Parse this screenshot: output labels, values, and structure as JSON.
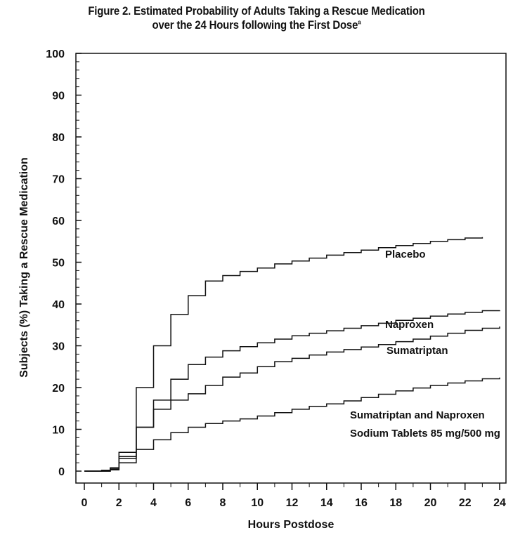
{
  "chart_data": {
    "type": "line",
    "step": true,
    "title_line1": "Figure 2. Estimated Probability of Adults Taking a Rescue Medication",
    "title_line2": "over the 24 Hours following the First Dose",
    "title_superscript": "a",
    "xlabel": "Hours Postdose",
    "ylabel": "Subjects (%) Taking a Rescue Medication",
    "xlim": [
      0,
      24
    ],
    "ylim": [
      0,
      100
    ],
    "xticks": [
      "0",
      "2",
      "4",
      "6",
      "8",
      "10",
      "12",
      "14",
      "16",
      "18",
      "20",
      "22",
      "24"
    ],
    "yticks": [
      "0",
      "10",
      "20",
      "30",
      "40",
      "50",
      "60",
      "70",
      "80",
      "90",
      "100"
    ],
    "series": [
      {
        "name": "Placebo",
        "label_lines": [
          "Placebo"
        ],
        "color": "#111111",
        "x": [
          0,
          1.0,
          1.5,
          2,
          3,
          4,
          5,
          6,
          7,
          8,
          9,
          10,
          11,
          12,
          13,
          14,
          15,
          16,
          17,
          18,
          19,
          20,
          21,
          22,
          23
        ],
        "y": [
          0,
          0.2,
          0.8,
          4.5,
          20,
          30,
          37.5,
          42,
          45.5,
          46.8,
          47.8,
          48.6,
          49.6,
          50.3,
          51.0,
          51.7,
          52.3,
          52.9,
          53.5,
          54.0,
          54.5,
          55.0,
          55.4,
          55.8,
          56.0
        ]
      },
      {
        "name": "Naproxen",
        "label_lines": [
          "Naproxen"
        ],
        "color": "#111111",
        "x": [
          0,
          1.5,
          2,
          3,
          4,
          5,
          6,
          7,
          8,
          9,
          10,
          11,
          12,
          13,
          14,
          15,
          16,
          17,
          18,
          19,
          20,
          21,
          22,
          23,
          24
        ],
        "y": [
          0,
          0.5,
          3.5,
          10.5,
          17,
          22,
          25.5,
          27.3,
          28.8,
          29.8,
          30.7,
          31.6,
          32.4,
          33.0,
          33.6,
          34.2,
          34.8,
          35.4,
          36.1,
          36.6,
          37.1,
          37.6,
          38.0,
          38.4,
          38.5
        ]
      },
      {
        "name": "Sumatriptan",
        "label_lines": [
          "Sumatriptan"
        ],
        "color": "#111111",
        "x": [
          0,
          1.5,
          2,
          3,
          4,
          5,
          6,
          7,
          8,
          9,
          10,
          11,
          12,
          13,
          14,
          15,
          16,
          17,
          18,
          19,
          20,
          21,
          22,
          23,
          24
        ],
        "y": [
          0,
          0.5,
          3,
          10.5,
          14.8,
          17,
          18.5,
          20.5,
          22.5,
          23.5,
          25.0,
          26.2,
          27.0,
          27.8,
          28.5,
          29.1,
          29.7,
          30.3,
          31.0,
          31.6,
          32.3,
          33.0,
          33.7,
          34.2,
          34.6
        ]
      },
      {
        "name": "Sumatriptan and Naproxen Sodium Tablets 85 mg/500 mg",
        "label_lines": [
          "Sumatriptan and Naproxen",
          "Sodium Tablets 85 mg/500 mg"
        ],
        "color": "#111111",
        "x": [
          0,
          1.5,
          2,
          3,
          4,
          5,
          6,
          7,
          8,
          9,
          10,
          11,
          12,
          13,
          14,
          15,
          16,
          17,
          18,
          19,
          20,
          21,
          22,
          23,
          24
        ],
        "y": [
          0,
          0.3,
          2,
          5.2,
          7.5,
          9.2,
          10.5,
          11.4,
          12.0,
          12.5,
          13.2,
          14.0,
          14.8,
          15.5,
          16.1,
          16.8,
          17.6,
          18.4,
          19.2,
          19.9,
          20.5,
          21.1,
          21.6,
          22.1,
          22.4
        ]
      }
    ]
  }
}
